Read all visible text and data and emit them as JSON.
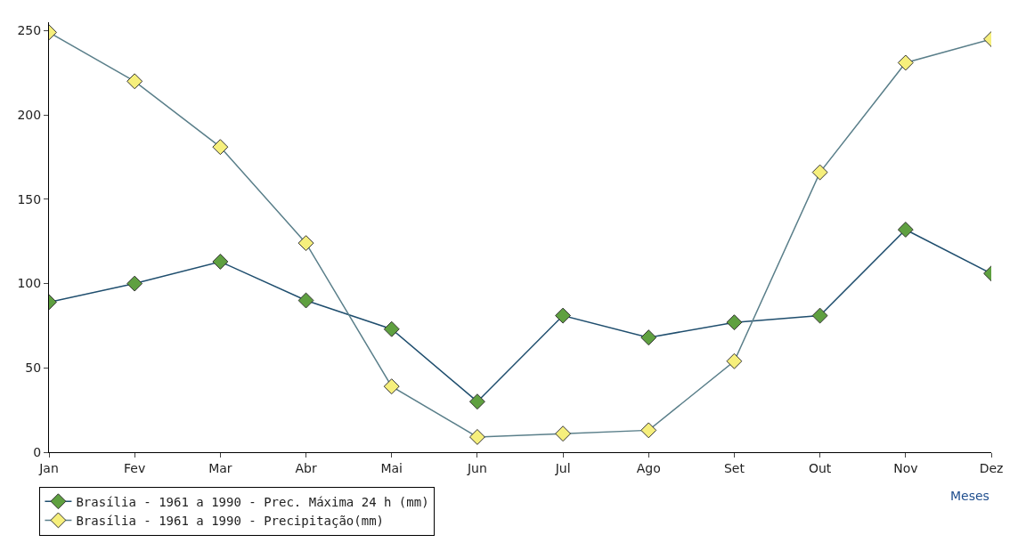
{
  "chart_data": {
    "type": "line",
    "categories": [
      "Jan",
      "Fev",
      "Mar",
      "Abr",
      "Mai",
      "Jun",
      "Jul",
      "Ago",
      "Set",
      "Out",
      "Nov",
      "Dez"
    ],
    "series": [
      {
        "name": "Brasília - 1961 a 1990 - Prec. Máxima 24 h (mm)",
        "color": "#5fa040",
        "values": [
          89,
          100,
          113,
          90,
          73,
          30,
          81,
          68,
          77,
          81,
          132,
          106
        ]
      },
      {
        "name": "Brasília - 1961 a 1990 - Precipitação(mm)",
        "color": "#f6ef7c",
        "values": [
          249,
          220,
          181,
          124,
          39,
          9,
          11,
          13,
          54,
          166,
          231,
          245
        ]
      }
    ],
    "xlabel": "Meses",
    "ylim": [
      0,
      255
    ],
    "yticks": [
      0,
      50,
      100,
      150,
      200,
      250
    ],
    "legend": "bottom left",
    "marker": "diamond",
    "line_style": "solid"
  }
}
